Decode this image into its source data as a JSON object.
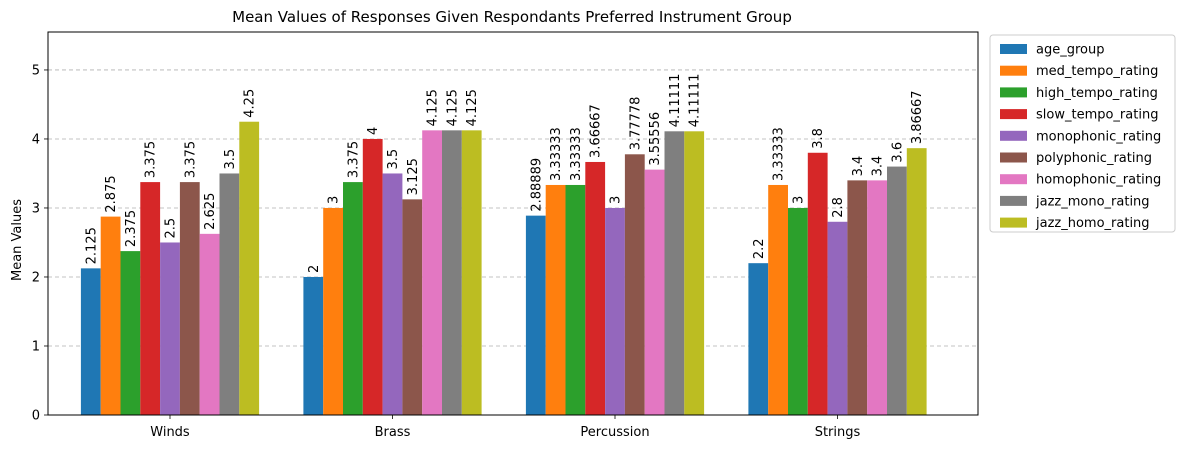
{
  "chart_data": {
    "type": "bar",
    "title": "Mean Values of Responses Given Respondants Preferred Instrument Group",
    "xlabel": "",
    "ylabel": "Mean Values",
    "ylim": [
      0,
      5.55
    ],
    "yticks": [
      "0",
      "1",
      "2",
      "3",
      "4",
      "5"
    ],
    "grid": "y-dashed",
    "legend_position": "outside-right-top",
    "categories": [
      "Winds",
      "Brass",
      "Percussion",
      "Strings"
    ],
    "series": [
      {
        "name": "age_group",
        "color": "#1f77b4",
        "values": [
          2.125,
          2,
          2.88889,
          2.2
        ],
        "labels": [
          "2.125",
          "2",
          "2.88889",
          "2.2"
        ]
      },
      {
        "name": "med_tempo_rating",
        "color": "#ff7f0e",
        "values": [
          2.875,
          3,
          3.33333,
          3.33333
        ],
        "labels": [
          "2.875",
          "3",
          "3.33333",
          "3.33333"
        ]
      },
      {
        "name": "high_tempo_rating",
        "color": "#2ca02c",
        "values": [
          2.375,
          3.375,
          3.33333,
          3
        ],
        "labels": [
          "2.375",
          "3.375",
          "3.33333",
          "3"
        ]
      },
      {
        "name": "slow_tempo_rating",
        "color": "#d62728",
        "values": [
          3.375,
          4,
          3.66667,
          3.8
        ],
        "labels": [
          "3.375",
          "4",
          "3.66667",
          "3.8"
        ]
      },
      {
        "name": "monophonic_rating",
        "color": "#9467bd",
        "values": [
          2.5,
          3.5,
          3,
          2.8
        ],
        "labels": [
          "2.5",
          "3.5",
          "3",
          "2.8"
        ]
      },
      {
        "name": "polyphonic_rating",
        "color": "#8c564b",
        "values": [
          3.375,
          3.125,
          3.77778,
          3.4
        ],
        "labels": [
          "3.375",
          "3.125",
          "3.77778",
          "3.4"
        ]
      },
      {
        "name": "homophonic_rating",
        "color": "#e377c2",
        "values": [
          2.625,
          4.125,
          3.55556,
          3.4
        ],
        "labels": [
          "2.625",
          "4.125",
          "3.55556",
          "3.4"
        ]
      },
      {
        "name": "jazz_mono_rating",
        "color": "#7f7f7f",
        "values": [
          3.5,
          4.125,
          4.11111,
          3.6
        ],
        "labels": [
          "3.5",
          "4.125",
          "4.11111",
          "3.6"
        ]
      },
      {
        "name": "jazz_homo_rating",
        "color": "#bcbd22",
        "values": [
          4.25,
          4.125,
          4.11111,
          3.86667
        ],
        "labels": [
          "4.25",
          "4.125",
          "4.11111",
          "3.86667"
        ]
      }
    ]
  }
}
